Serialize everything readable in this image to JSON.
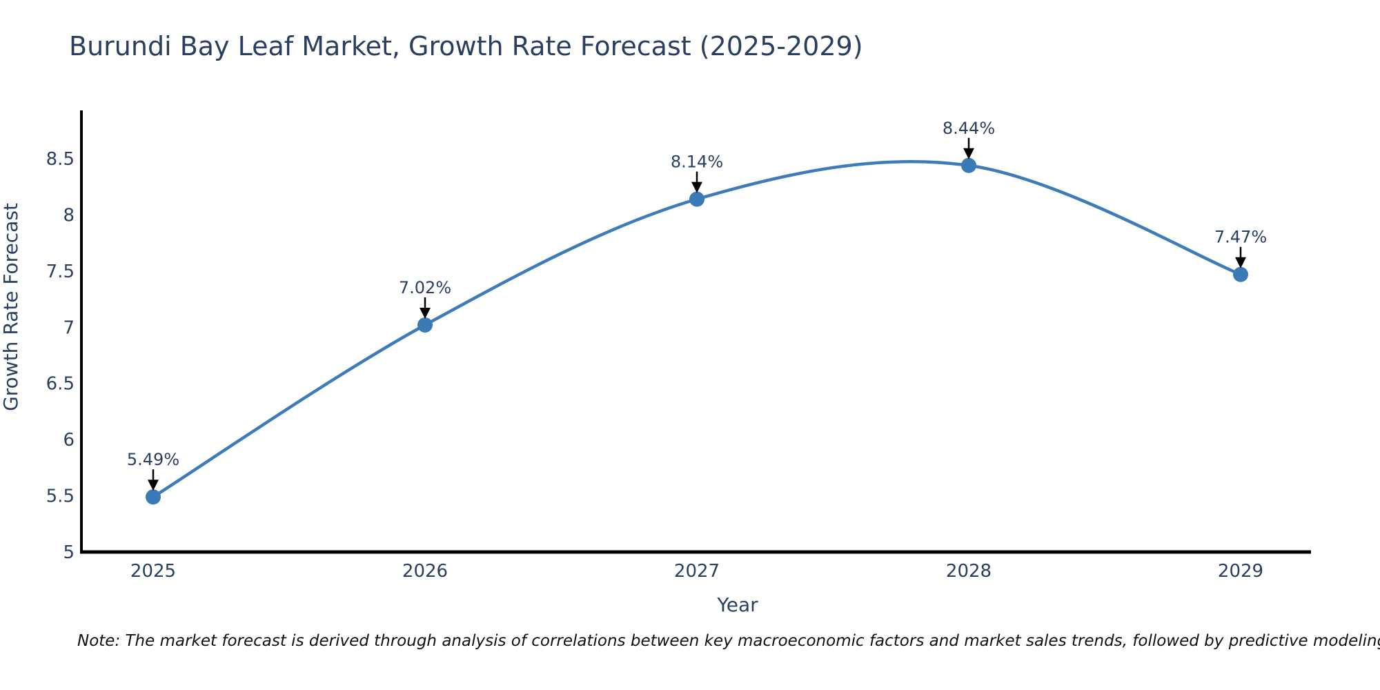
{
  "page": {
    "background": "#ffffff"
  },
  "chart_data": {
    "type": "line",
    "title": "Burundi Bay Leaf Market, Growth Rate Forecast (2025-2029)",
    "categories": [
      "2025",
      "2026",
      "2027",
      "2028",
      "2029"
    ],
    "values": [
      5.49,
      7.02,
      8.14,
      8.44,
      7.47
    ],
    "point_labels": [
      "5.49%",
      "7.02%",
      "8.14%",
      "8.44%",
      "7.47%"
    ],
    "xlabel": "Year",
    "ylabel": "Growth Rate Forecast",
    "ylim": [
      5,
      8.93
    ],
    "yticks": [
      "5",
      "5.5",
      "6",
      "6.5",
      "7",
      "7.5",
      "8",
      "8.5"
    ],
    "grid": false,
    "legend_position": "none",
    "line_shape": "spline",
    "marker_style": "circle",
    "annotation_style": "value-label-with-down-arrow",
    "colors": {
      "line": "#3d7cb8",
      "marker": "#3a7ab6",
      "axis": "#000000",
      "text": "#2a3f5f",
      "annotation_arrow": "#000000",
      "note_text": "#111111",
      "background": "#ffffff"
    },
    "note": "Note: The market forecast is derived through analysis of correlations between key macroeconomic factors and market sales trends, followed by predictive modeling to project future sales"
  }
}
